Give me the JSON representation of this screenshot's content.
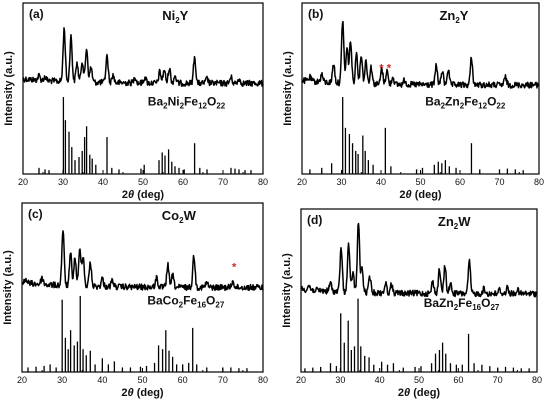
{
  "chart_data": [
    {
      "type": "line",
      "panel_label": "(a)",
      "sample": {
        "base": "Ni",
        "sub": "2",
        "tail": "Y"
      },
      "reference_parts": [
        {
          "t": "Ba",
          "s": false
        },
        {
          "t": "2",
          "s": true
        },
        {
          "t": "Ni",
          "s": false
        },
        {
          "t": "2",
          "s": true
        },
        {
          "t": "Fe",
          "s": false
        },
        {
          "t": "12",
          "s": true
        },
        {
          "t": "O",
          "s": false
        },
        {
          "t": "22",
          "s": true
        }
      ],
      "xlabel": {
        "theta_prefix": "2",
        "theta": "θ",
        "unit": " (deg)"
      },
      "ylabel": "Intensity (a.u.)",
      "xlim": [
        20,
        80
      ],
      "x_ticks": [
        "20",
        "30",
        "40",
        "50",
        "60",
        "70",
        "80"
      ],
      "series": [
        {
          "baseline": 0.47,
          "peaks": [
            [
              24.0,
              0.06
            ],
            [
              25.5,
              0.05
            ],
            [
              30.3,
              0.7
            ],
            [
              32.0,
              0.6
            ],
            [
              33.5,
              0.25
            ],
            [
              34.8,
              0.28
            ],
            [
              35.9,
              0.45
            ],
            [
              37.0,
              0.2
            ],
            [
              41.0,
              0.35
            ],
            [
              42.5,
              0.1
            ],
            [
              48.0,
              0.08
            ],
            [
              50.5,
              0.08
            ],
            [
              54.2,
              0.15
            ],
            [
              55.3,
              0.18
            ],
            [
              56.6,
              0.2
            ],
            [
              58.0,
              0.1
            ],
            [
              62.9,
              0.35
            ],
            [
              66.0,
              0.06
            ],
            [
              72.0,
              0.08
            ],
            [
              74.0,
              0.06
            ]
          ]
        }
      ],
      "reference_sticks": [
        [
          24.0,
          0.08
        ],
        [
          25.5,
          0.06
        ],
        [
          26.5,
          0.05
        ],
        [
          30.1,
          1.0
        ],
        [
          30.6,
          0.7
        ],
        [
          31.5,
          0.55
        ],
        [
          32.2,
          0.35
        ],
        [
          33.0,
          0.18
        ],
        [
          34.0,
          0.22
        ],
        [
          34.8,
          0.3
        ],
        [
          35.4,
          0.48
        ],
        [
          35.9,
          0.62
        ],
        [
          36.7,
          0.25
        ],
        [
          37.3,
          0.2
        ],
        [
          38.2,
          0.12
        ],
        [
          41.0,
          0.48
        ],
        [
          42.2,
          0.08
        ],
        [
          44.0,
          0.06
        ],
        [
          49.5,
          0.07
        ],
        [
          50.3,
          0.12
        ],
        [
          54.0,
          0.18
        ],
        [
          54.8,
          0.28
        ],
        [
          55.5,
          0.24
        ],
        [
          56.4,
          0.32
        ],
        [
          57.2,
          0.16
        ],
        [
          58.0,
          0.1
        ],
        [
          59.0,
          0.08
        ],
        [
          60.3,
          0.06
        ],
        [
          62.9,
          0.4
        ],
        [
          64.2,
          0.08
        ],
        [
          66.0,
          0.06
        ],
        [
          72.0,
          0.08
        ],
        [
          73.0,
          0.07
        ],
        [
          74.0,
          0.06
        ],
        [
          75.5,
          0.05
        ],
        [
          77.0,
          0.05
        ]
      ]
    },
    {
      "type": "line",
      "panel_label": "(b)",
      "sample": {
        "base": "Zn",
        "sub": "2",
        "tail": "Y"
      },
      "reference_parts": [
        {
          "t": "Ba",
          "s": false
        },
        {
          "t": "2",
          "s": true
        },
        {
          "t": "Zn",
          "s": false
        },
        {
          "t": "2",
          "s": true
        },
        {
          "t": "Fe",
          "s": false
        },
        {
          "t": "12",
          "s": true
        },
        {
          "t": "O",
          "s": false
        },
        {
          "t": "22",
          "s": true
        }
      ],
      "xlabel": {
        "theta_prefix": "2",
        "theta": "θ",
        "unit": " (deg)"
      },
      "ylabel": "Intensity (a.u.)",
      "xlim": [
        20,
        80
      ],
      "x_ticks": [
        "20",
        "30",
        "40",
        "50",
        "60",
        "70",
        "80"
      ],
      "series": [
        {
          "baseline": 0.48,
          "peaks": [
            [
              22.0,
              0.05
            ],
            [
              25.0,
              0.1
            ],
            [
              28.0,
              0.25
            ],
            [
              30.3,
              0.82
            ],
            [
              31.4,
              0.45
            ],
            [
              32.3,
              0.55
            ],
            [
              33.8,
              0.4
            ],
            [
              35.0,
              0.38
            ],
            [
              36.2,
              0.3
            ],
            [
              37.5,
              0.22
            ],
            [
              40.2,
              0.2
            ],
            [
              41.5,
              0.18
            ],
            [
              43.0,
              0.1
            ],
            [
              46.0,
              0.06
            ],
            [
              54.0,
              0.25
            ],
            [
              55.5,
              0.18
            ],
            [
              57.0,
              0.2
            ],
            [
              62.9,
              0.35
            ],
            [
              71.5,
              0.1
            ]
          ]
        }
      ],
      "reference_sticks": [
        [
          22.0,
          0.06
        ],
        [
          25.0,
          0.08
        ],
        [
          27.5,
          0.14
        ],
        [
          30.3,
          1.0
        ],
        [
          31.0,
          0.6
        ],
        [
          32.0,
          0.52
        ],
        [
          32.8,
          0.4
        ],
        [
          33.6,
          0.3
        ],
        [
          34.2,
          0.26
        ],
        [
          35.4,
          0.5
        ],
        [
          36.0,
          0.3
        ],
        [
          36.8,
          0.18
        ],
        [
          38.0,
          0.12
        ],
        [
          41.1,
          0.6
        ],
        [
          42.5,
          0.1
        ],
        [
          49.0,
          0.06
        ],
        [
          50.5,
          0.08
        ],
        [
          53.5,
          0.12
        ],
        [
          54.5,
          0.16
        ],
        [
          55.4,
          0.14
        ],
        [
          56.3,
          0.18
        ],
        [
          57.3,
          0.1
        ],
        [
          59.0,
          0.08
        ],
        [
          62.9,
          0.4
        ],
        [
          65.0,
          0.06
        ],
        [
          70.0,
          0.06
        ],
        [
          72.0,
          0.07
        ],
        [
          74.0,
          0.06
        ],
        [
          76.0,
          0.05
        ]
      ]
    },
    {
      "type": "line",
      "panel_label": "(c)",
      "sample": {
        "base": "Co",
        "sub": "2",
        "tail": "W"
      },
      "reference_parts": [
        {
          "t": "BaCo",
          "s": false
        },
        {
          "t": "2",
          "s": true
        },
        {
          "t": "Fe",
          "s": false
        },
        {
          "t": "16",
          "s": true
        },
        {
          "t": "O",
          "s": false
        },
        {
          "t": "27",
          "s": true
        }
      ],
      "xlabel": {
        "theta_prefix": "2",
        "theta": "θ",
        "unit": " (deg)"
      },
      "ylabel": "Intensity (a.u.)",
      "xlim": [
        20,
        80
      ],
      "x_ticks": [
        "20",
        "30",
        "40",
        "50",
        "60",
        "70",
        "80"
      ],
      "series": [
        {
          "baseline": 0.5,
          "peaks": [
            [
              21.0,
              0.05
            ],
            [
              25.0,
              0.08
            ],
            [
              30.2,
              0.7
            ],
            [
              32.1,
              0.4
            ],
            [
              33.2,
              0.35
            ],
            [
              34.4,
              0.45
            ],
            [
              35.2,
              0.38
            ],
            [
              37.0,
              0.3
            ],
            [
              40.0,
              0.1
            ],
            [
              42.5,
              0.08
            ],
            [
              53.5,
              0.12
            ],
            [
              56.3,
              0.28
            ],
            [
              57.5,
              0.15
            ],
            [
              62.8,
              0.4
            ],
            [
              66.0,
              0.06
            ],
            [
              72.5,
              0.08
            ]
          ]
        }
      ],
      "reference_sticks": [
        [
          21.5,
          0.06
        ],
        [
          23.5,
          0.07
        ],
        [
          25.5,
          0.08
        ],
        [
          27.0,
          0.1
        ],
        [
          28.5,
          0.06
        ],
        [
          30.0,
          0.95
        ],
        [
          30.8,
          0.45
        ],
        [
          31.5,
          0.3
        ],
        [
          32.1,
          0.55
        ],
        [
          33.0,
          0.35
        ],
        [
          33.8,
          0.4
        ],
        [
          34.5,
          1.0
        ],
        [
          35.2,
          0.3
        ],
        [
          36.0,
          0.22
        ],
        [
          37.0,
          0.28
        ],
        [
          38.2,
          0.1
        ],
        [
          40.0,
          0.18
        ],
        [
          41.5,
          0.1
        ],
        [
          43.0,
          0.14
        ],
        [
          45.0,
          0.06
        ],
        [
          47.0,
          0.06
        ],
        [
          49.5,
          0.07
        ],
        [
          51.0,
          0.08
        ],
        [
          53.0,
          0.12
        ],
        [
          54.0,
          0.35
        ],
        [
          55.0,
          0.3
        ],
        [
          55.8,
          0.55
        ],
        [
          56.6,
          0.28
        ],
        [
          57.5,
          0.2
        ],
        [
          58.5,
          0.1
        ],
        [
          60.0,
          0.1
        ],
        [
          61.5,
          0.12
        ],
        [
          62.5,
          0.58
        ],
        [
          63.5,
          0.1
        ],
        [
          66.0,
          0.06
        ],
        [
          70.0,
          0.06
        ],
        [
          72.0,
          0.06
        ],
        [
          74.0,
          0.05
        ],
        [
          76.0,
          0.05
        ]
      ]
    },
    {
      "type": "line",
      "panel_label": "(d)",
      "sample": {
        "base": "Zn",
        "sub": "2",
        "tail": "W"
      },
      "reference_parts": [
        {
          "t": "BaZn",
          "s": false
        },
        {
          "t": "2",
          "s": true
        },
        {
          "t": "Fe",
          "s": false
        },
        {
          "t": "16",
          "s": true
        },
        {
          "t": "O",
          "s": false
        },
        {
          "t": "27",
          "s": true
        }
      ],
      "xlabel": {
        "theta_prefix": "2",
        "theta": "θ",
        "unit": " (deg)"
      },
      "ylabel": "Intensity (a.u.)",
      "xlim": [
        20,
        80
      ],
      "x_ticks": [
        "20",
        "30",
        "40",
        "50",
        "60",
        "70",
        "80"
      ],
      "series": [
        {
          "baseline": 0.52,
          "peaks": [
            [
              22.0,
              0.05
            ],
            [
              27.5,
              0.1
            ],
            [
              30.2,
              0.55
            ],
            [
              32.1,
              0.6
            ],
            [
              33.2,
              0.25
            ],
            [
              34.6,
              0.88
            ],
            [
              35.5,
              0.3
            ],
            [
              37.5,
              0.2
            ],
            [
              41.5,
              0.12
            ],
            [
              43.0,
              0.1
            ],
            [
              53.5,
              0.15
            ],
            [
              55.2,
              0.3
            ],
            [
              56.6,
              0.35
            ],
            [
              58.0,
              0.12
            ],
            [
              62.8,
              0.4
            ],
            [
              66.5,
              0.06
            ],
            [
              70.5,
              0.05
            ],
            [
              72.5,
              0.08
            ],
            [
              75.0,
              0.05
            ]
          ]
        }
      ],
      "reference_sticks": [
        [
          21.0,
          0.05
        ],
        [
          23.0,
          0.06
        ],
        [
          25.0,
          0.07
        ],
        [
          27.5,
          0.12
        ],
        [
          29.0,
          0.08
        ],
        [
          30.1,
          0.8
        ],
        [
          31.0,
          0.4
        ],
        [
          32.0,
          0.7
        ],
        [
          32.8,
          0.3
        ],
        [
          33.6,
          0.35
        ],
        [
          34.5,
          1.0
        ],
        [
          35.2,
          0.35
        ],
        [
          36.2,
          0.22
        ],
        [
          37.3,
          0.2
        ],
        [
          38.5,
          0.1
        ],
        [
          40.5,
          0.14
        ],
        [
          42.0,
          0.1
        ],
        [
          43.5,
          0.12
        ],
        [
          46.0,
          0.06
        ],
        [
          49.0,
          0.07
        ],
        [
          50.5,
          0.08
        ],
        [
          53.2,
          0.12
        ],
        [
          54.2,
          0.25
        ],
        [
          55.2,
          0.3
        ],
        [
          56.0,
          0.4
        ],
        [
          56.8,
          0.25
        ],
        [
          58.0,
          0.12
        ],
        [
          59.5,
          0.1
        ],
        [
          61.0,
          0.1
        ],
        [
          62.6,
          0.52
        ],
        [
          64.0,
          0.12
        ],
        [
          66.0,
          0.1
        ],
        [
          68.0,
          0.08
        ],
        [
          70.0,
          0.06
        ],
        [
          72.0,
          0.07
        ],
        [
          74.0,
          0.06
        ],
        [
          76.0,
          0.05
        ],
        [
          78.0,
          0.05
        ]
      ]
    }
  ],
  "markers": {
    "panel_b": {
      "positions": [
        40.1,
        42.0
      ],
      "symbol": "*",
      "color": "#d62728"
    },
    "panel_c": {
      "positions": [
        72.8
      ],
      "symbol": "*",
      "color": "#d62728"
    }
  }
}
